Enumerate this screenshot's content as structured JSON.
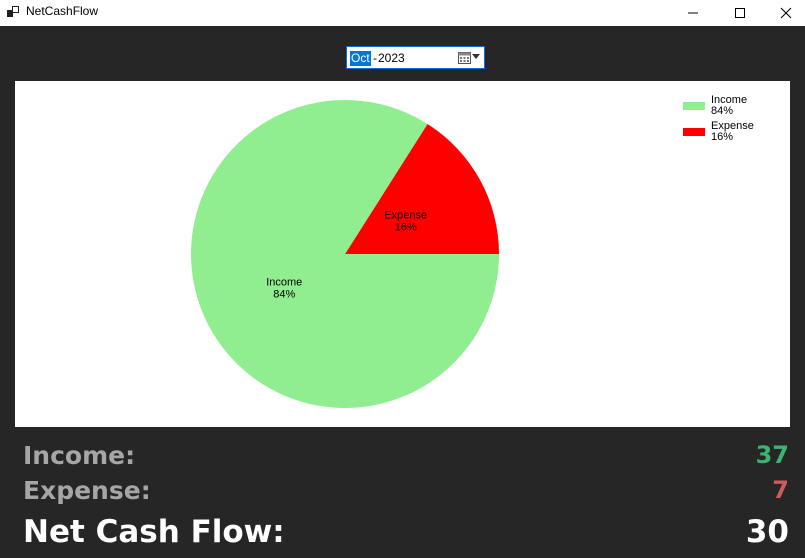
{
  "window": {
    "title": "NetCashFlow",
    "icons": {
      "app": "app-icon",
      "minimize": "minimize-icon",
      "maximize": "maximize-icon",
      "close": "close-icon"
    }
  },
  "datepicker": {
    "month": "Oct",
    "separator": "-",
    "year": "2023",
    "icons": {
      "calendar": "calendar-icon",
      "dropdown": "chevron-down-icon"
    }
  },
  "chart_data": {
    "type": "pie",
    "categories": [
      "Income",
      "Expense"
    ],
    "values": [
      84,
      16
    ],
    "colors": [
      "#90ee90",
      "#ff0000"
    ],
    "slice_labels": [
      {
        "name": "Income",
        "pct": "84%"
      },
      {
        "name": "Expense",
        "pct": "16%"
      }
    ],
    "legend": {
      "placement": "top-right",
      "entries": [
        {
          "name": "Income",
          "pct": "84%",
          "color": "#90ee90"
        },
        {
          "name": "Expense",
          "pct": "16%",
          "color": "#ff0000"
        }
      ]
    }
  },
  "summary": {
    "income_label": "Income:",
    "income_value": "37",
    "expense_label": "Expense:",
    "expense_value": "7",
    "net_label": "Net Cash Flow:",
    "net_value": "30",
    "colors": {
      "income": "#3cb371",
      "expense": "#cd5c5c",
      "label": "#a6a6a6",
      "net": "#ffffff"
    }
  }
}
